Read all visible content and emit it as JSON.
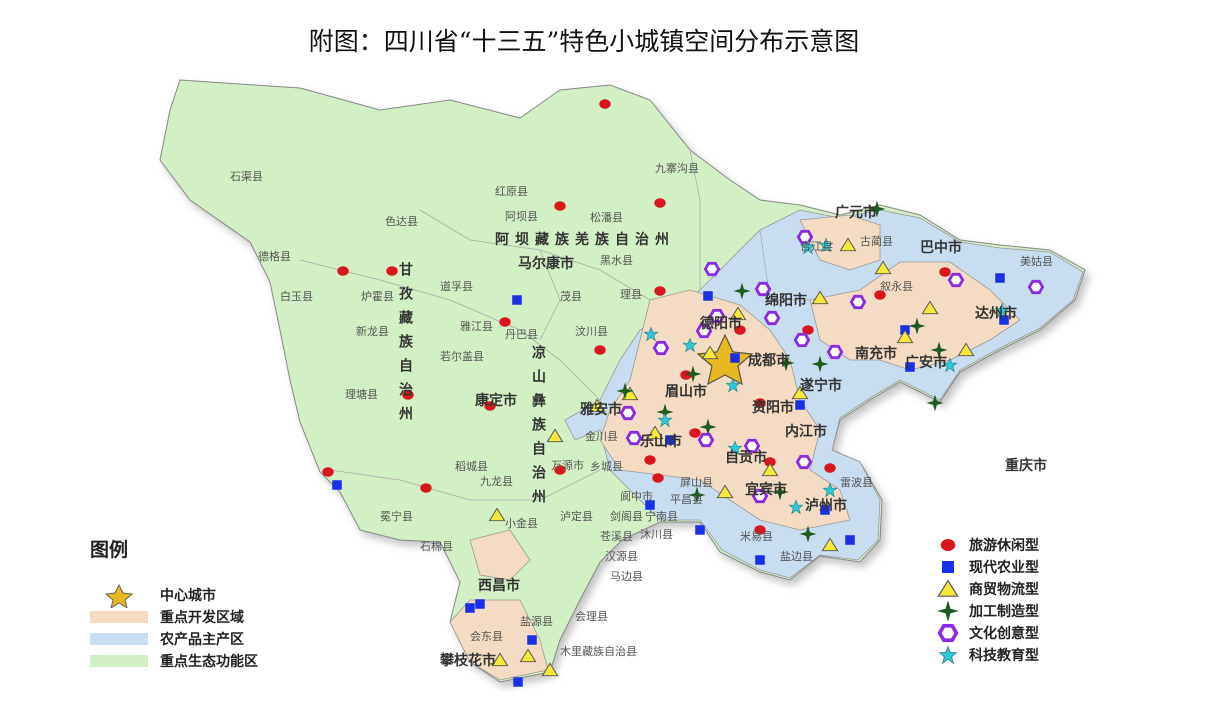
{
  "title": "附图：四川省“十三五”特色小城镇空间分布示意图",
  "map": {
    "neighbor_label": "重庆市",
    "center_city": "成都市",
    "cities": [
      "广元市",
      "巴中市",
      "达州市",
      "南充市",
      "绵阳市",
      "德阳市",
      "遂宁市",
      "资阳市",
      "眉山市",
      "乐山市",
      "雅安市",
      "内江市",
      "自贡市",
      "宜宾市",
      "泸州市",
      "康定市",
      "马尔康市",
      "西昌市",
      "广安市",
      "攀枝花市"
    ],
    "prefectures": [
      "阿坝藏族羌族自治州",
      "甘孜藏族自治州",
      "凉山彝族自治州"
    ],
    "counties": [
      "石渠县",
      "色达县",
      "德格县",
      "白玉县",
      "新龙县",
      "理塘县",
      "稻城县",
      "乡城县",
      "九龙县",
      "炉霍县",
      "道孚县",
      "丹巴县",
      "雅江县",
      "若尔盖县",
      "红原县",
      "阿坝县",
      "松潘县",
      "九寨沟县",
      "黑水县",
      "理县",
      "茂县",
      "汶川县",
      "小金县",
      "金川县",
      "泸定县",
      "石棉县",
      "冕宁县",
      "盐源县",
      "木里藏族自治县",
      "会理县",
      "会东县",
      "宁南县",
      "米易县",
      "盐边县",
      "雷波县",
      "美姑县",
      "叙永县",
      "古蔺县",
      "合江县",
      "万源市",
      "阆中市",
      "平昌县",
      "剑阁县",
      "苍溪县",
      "汉源县",
      "马边县",
      "沐川县",
      "屏山县"
    ]
  },
  "legend_left": {
    "title": "图例",
    "items": [
      {
        "label": "中心城市",
        "kind": "star",
        "color": "#e8b820"
      },
      {
        "label": "重点开发区域",
        "kind": "swatch",
        "color": "#f3dcc3"
      },
      {
        "label": "农产品主产区",
        "kind": "swatch",
        "color": "#c8ddf0"
      },
      {
        "label": "重点生态功能区",
        "kind": "swatch",
        "color": "#d3efc6"
      }
    ]
  },
  "legend_right": {
    "items": [
      {
        "label": "旅游休闲型",
        "icon": "red-circle",
        "color": "#d8161b"
      },
      {
        "label": "现代农业型",
        "icon": "blue-square",
        "color": "#1a2fe8"
      },
      {
        "label": "商贸物流型",
        "icon": "yellow-triangle",
        "color": "#f5e83a"
      },
      {
        "label": "加工制造型",
        "icon": "green-four-point-star",
        "color": "#1e5a1e"
      },
      {
        "label": "文化创意型",
        "icon": "purple-hexagon",
        "color": "#8a2be2"
      },
      {
        "label": "科技教育型",
        "icon": "cyan-star",
        "color": "#2cc9d6"
      }
    ]
  }
}
